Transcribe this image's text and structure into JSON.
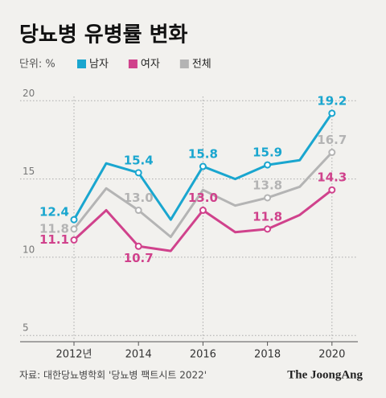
{
  "chart_data": {
    "type": "line",
    "title": "당뇨병 유병률 변화",
    "unit": "단위: %",
    "source": "자료: 대한당뇨병학회 '당뇨병 팩트시트 2022'",
    "logo": "The JoongAng",
    "categories": [
      "2012년",
      null,
      "2014",
      null,
      "2016",
      null,
      "2018",
      null,
      "2020"
    ],
    "series": [
      {
        "name": "남자",
        "color": "#1aa6cf",
        "values": [
          12.4,
          16.0,
          15.4,
          12.4,
          15.8,
          15.0,
          15.9,
          16.2,
          19.2
        ],
        "value_labels": [
          "12.4",
          null,
          "15.4",
          null,
          "15.8",
          null,
          "15.9",
          null,
          "19.2"
        ]
      },
      {
        "name": "여자",
        "color": "#d0428c",
        "values": [
          11.1,
          13.0,
          10.7,
          10.4,
          13.0,
          11.6,
          11.8,
          12.7,
          14.3
        ],
        "value_labels": [
          "11.1",
          null,
          "10.7",
          null,
          "13.0",
          null,
          "11.8",
          null,
          "14.3"
        ]
      },
      {
        "name": "전체",
        "color": "#b4b4b4",
        "values": [
          11.8,
          14.4,
          13.0,
          11.3,
          14.3,
          13.3,
          13.8,
          14.5,
          16.7
        ],
        "value_labels": [
          "11.8",
          null,
          "13.0",
          null,
          null,
          null,
          "13.8",
          null,
          "16.7"
        ]
      }
    ],
    "ylim": [
      4.6,
      21.3
    ],
    "yticks": [
      5,
      10,
      15,
      20
    ],
    "grid": true
  }
}
